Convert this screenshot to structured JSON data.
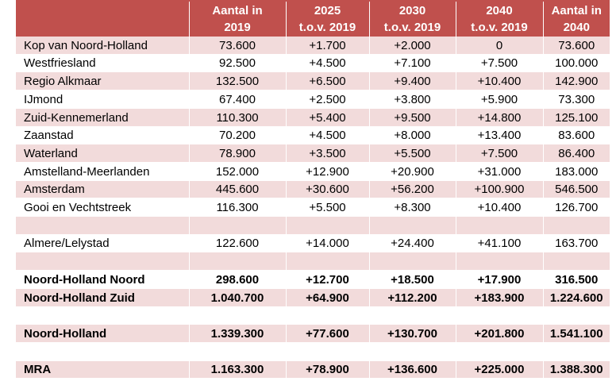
{
  "header": [
    [
      "",
      ""
    ],
    [
      "Aantal in",
      "2019"
    ],
    [
      "2025",
      "t.o.v. 2019"
    ],
    [
      "2030",
      "t.o.v. 2019"
    ],
    [
      "2040",
      "t.o.v. 2019"
    ],
    [
      "Aantal in",
      "2040"
    ]
  ],
  "rows": [
    {
      "cells": [
        "Kop van Noord-Holland",
        "73.600",
        "+1.700",
        "+2.000",
        "0",
        "73.600"
      ],
      "shade": "pink",
      "bold": false,
      "h": 23
    },
    {
      "cells": [
        "Westfriesland",
        "92.500",
        "+4.500",
        "+7.100",
        "+7.500",
        "100.000"
      ],
      "shade": "white",
      "bold": false,
      "h": 22
    },
    {
      "cells": [
        "Regio Alkmaar",
        "132.500",
        "+6.500",
        "+9.400",
        "+10.400",
        "142.900"
      ],
      "shade": "pink",
      "bold": false,
      "h": 23
    },
    {
      "cells": [
        "IJmond",
        "67.400",
        "+2.500",
        "+3.800",
        "+5.900",
        "73.300"
      ],
      "shade": "white",
      "bold": false,
      "h": 23
    },
    {
      "cells": [
        "Zuid-Kennemerland",
        "110.300",
        "+5.400",
        "+9.500",
        "+14.800",
        "125.100"
      ],
      "shade": "pink",
      "bold": false,
      "h": 23
    },
    {
      "cells": [
        "Zaanstad",
        "70.200",
        "+4.500",
        "+8.000",
        "+13.400",
        "83.600"
      ],
      "shade": "white",
      "bold": false,
      "h": 22
    },
    {
      "cells": [
        "Waterland",
        "78.900",
        "+3.500",
        "+5.500",
        "+7.500",
        "86.400"
      ],
      "shade": "pink",
      "bold": false,
      "h": 23
    },
    {
      "cells": [
        "Amstelland-Meerlanden",
        "152.000",
        "+12.900",
        "+20.900",
        "+31.000",
        "183.000"
      ],
      "shade": "white",
      "bold": false,
      "h": 23
    },
    {
      "cells": [
        "Amsterdam",
        "445.600",
        "+30.600",
        "+56.200",
        "+100.900",
        "546.500"
      ],
      "shade": "pink",
      "bold": false,
      "h": 22
    },
    {
      "cells": [
        "Gooi en Vechtstreek",
        "116.300",
        "+5.500",
        "+8.300",
        "+10.400",
        "126.700"
      ],
      "shade": "white",
      "bold": false,
      "h": 23
    },
    {
      "cells": [
        "",
        "",
        "",
        "",
        "",
        ""
      ],
      "shade": "pink",
      "bold": false,
      "h": 23
    },
    {
      "cells": [
        "Almere/Lelystad",
        "122.600",
        "+14.000",
        "+24.400",
        "+41.100",
        "163.700"
      ],
      "shade": "white",
      "bold": false,
      "h": 22
    },
    {
      "cells": [
        "",
        "",
        "",
        "",
        "",
        ""
      ],
      "shade": "pink",
      "bold": false,
      "h": 23
    },
    {
      "cells": [
        "Noord-Holland Noord",
        "298.600",
        "+12.700",
        "+18.500",
        "+17.900",
        "316.500"
      ],
      "shade": "white",
      "bold": true,
      "h": 23
    },
    {
      "cells": [
        "Noord-Holland Zuid",
        "1.040.700",
        "+64.900",
        "+112.200",
        "+183.900",
        "1.224.600"
      ],
      "shade": "pink",
      "bold": true,
      "h": 23
    },
    {
      "cells": [
        "",
        "",
        "",
        "",
        "",
        ""
      ],
      "shade": "white",
      "bold": false,
      "h": 22
    },
    {
      "cells": [
        "Noord-Holland",
        "1.339.300",
        "+77.600",
        "+130.700",
        "+201.800",
        "1.541.100"
      ],
      "shade": "pink",
      "bold": true,
      "h": 23
    },
    {
      "cells": [
        "",
        "",
        "",
        "",
        "",
        ""
      ],
      "shade": "white",
      "bold": false,
      "h": 23
    },
    {
      "cells": [
        "MRA",
        "1.163.300",
        "+78.900",
        "+136.600",
        "+225.000",
        "1.388.300"
      ],
      "shade": "pink",
      "bold": true,
      "h": 22
    }
  ]
}
